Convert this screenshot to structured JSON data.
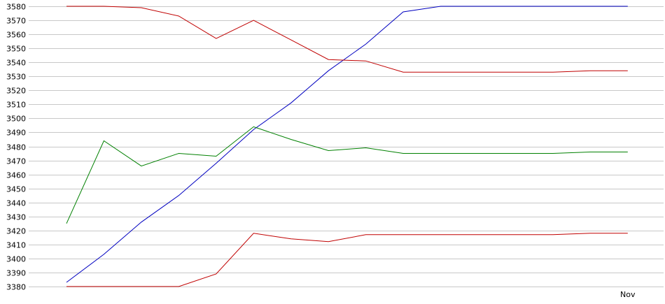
{
  "chart_data": {
    "type": "line",
    "title": "",
    "xlabel": "",
    "ylabel": "",
    "ylim": [
      3380,
      3580
    ],
    "y_ticks": [
      3380,
      3390,
      3400,
      3410,
      3420,
      3430,
      3440,
      3450,
      3460,
      3470,
      3480,
      3490,
      3500,
      3510,
      3520,
      3530,
      3540,
      3550,
      3560,
      3570,
      3580
    ],
    "x_tick_labels": [
      {
        "index": 15,
        "label": "Nov"
      }
    ],
    "grid": {
      "horizontal": true,
      "vertical": false
    },
    "legend": "none",
    "x": [
      0,
      1,
      2,
      3,
      4,
      5,
      6,
      7,
      8,
      9,
      10,
      11,
      12,
      13,
      14,
      15
    ],
    "series": [
      {
        "color": "#0000c0",
        "values": [
          3383,
          3403,
          3426,
          3445,
          3468,
          3492,
          3511,
          3534,
          3553,
          3576,
          3580,
          3580,
          3580,
          3580,
          3580,
          3580
        ]
      },
      {
        "color": "#c00000",
        "values": [
          3580,
          3580,
          3579,
          3573,
          3557,
          3570,
          3556,
          3542,
          3541,
          3533,
          3533,
          3533,
          3533,
          3533,
          3534,
          3534
        ]
      },
      {
        "color": "#008000",
        "values": [
          3425,
          3484,
          3466,
          3475,
          3473,
          3494,
          3485,
          3477,
          3479,
          3475,
          3475,
          3475,
          3475,
          3475,
          3476,
          3476
        ]
      },
      {
        "color": "#c00000",
        "values": [
          3380,
          3380,
          3380,
          3380,
          3389,
          3418,
          3414,
          3412,
          3417,
          3417,
          3417,
          3417,
          3417,
          3417,
          3418,
          3418
        ]
      }
    ]
  }
}
